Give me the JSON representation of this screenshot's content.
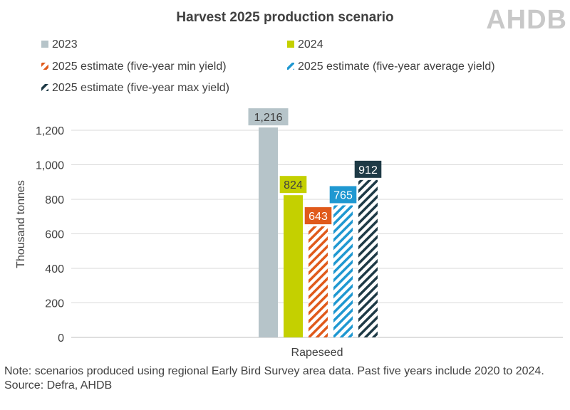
{
  "logo": {
    "text": "AHDB",
    "color": "#c8c8c8"
  },
  "chart_data": {
    "type": "bar",
    "title": "Harvest 2025 production scenario",
    "ylabel": "Thousand tonnes",
    "xlabel": "",
    "categories": [
      "Rapeseed"
    ],
    "ylim": [
      0,
      1300
    ],
    "yticks": [
      0,
      200,
      400,
      600,
      800,
      1000,
      1200
    ],
    "ytick_labels": [
      "0",
      "200",
      "400",
      "600",
      "800",
      "1,000",
      "1,200"
    ],
    "grid": true,
    "legend_position": "top",
    "series": [
      {
        "name": "2023",
        "values": [
          1216
        ],
        "label": "1,216",
        "color": "#b6c4c9",
        "pattern": "solid",
        "label_text_color": "#404040"
      },
      {
        "name": "2024",
        "values": [
          824
        ],
        "label": "824",
        "color": "#c4d000",
        "pattern": "solid",
        "label_text_color": "#404040"
      },
      {
        "name": "2025 estimate (five-year min yield)",
        "values": [
          643
        ],
        "label": "643",
        "color": "#e05a1b",
        "pattern": "hatched",
        "label_text_color": "#ffffff"
      },
      {
        "name": "2025 estimate (five-year average yield)",
        "values": [
          765
        ],
        "label": "765",
        "color": "#1f98d1",
        "pattern": "hatched",
        "label_text_color": "#ffffff"
      },
      {
        "name": "2025 estimate (five-year max yield)",
        "values": [
          912
        ],
        "label": "912",
        "color": "#1e3a46",
        "pattern": "hatched",
        "label_text_color": "#ffffff"
      }
    ]
  },
  "notes": {
    "line1": "Note: scenarios produced using regional Early Bird Survey area data. Past five years include 2020 to 2024.",
    "source": "Source: Defra, AHDB"
  }
}
